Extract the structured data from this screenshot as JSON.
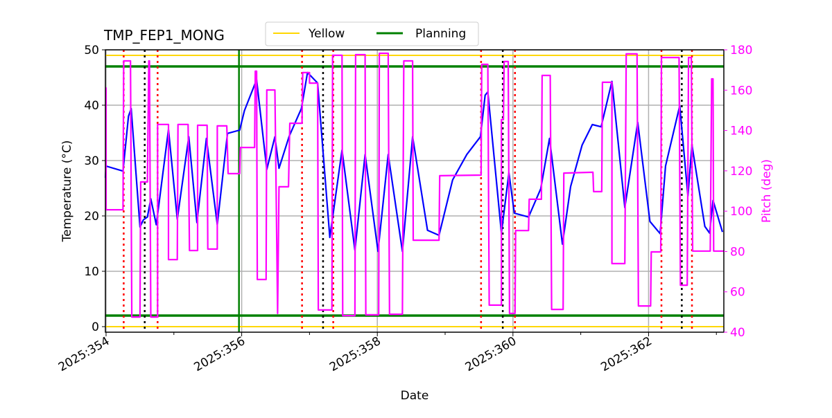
{
  "chart_data": {
    "type": "line",
    "title": "TMP_FEP1_MONG",
    "xlabel": "Date",
    "ylabel": "Temperature (°C)",
    "y2label": "Pitch (deg)",
    "xlim": [
      353.99,
      363.11
    ],
    "ylim": [
      -1,
      50
    ],
    "y2lim": [
      40,
      180
    ],
    "x_ticks": [
      354,
      356,
      358,
      360,
      362
    ],
    "x_tick_labels": [
      "2025:354",
      "2025:356",
      "2025:358",
      "2025:360",
      "2025:362"
    ],
    "x_minor_ticks": [
      355,
      357,
      359,
      361,
      363
    ],
    "y_ticks": [
      0,
      10,
      20,
      30,
      40,
      50
    ],
    "y2_ticks": [
      40,
      60,
      80,
      100,
      120,
      140,
      160,
      180
    ],
    "grid": true,
    "legend": {
      "placement": "top-center",
      "entries": [
        "Yellow",
        "Planning"
      ]
    },
    "colors": {
      "temperature": "#0000ff",
      "pitch": "#ff00ff",
      "yellow": "#ffd700",
      "planning": "#008000",
      "red_marker": "#ff0000",
      "black_marker": "#000000",
      "y2_axis": "#ff00ff"
    },
    "limits": [
      {
        "name": "Yellow",
        "values": [
          49,
          0
        ],
        "color": "#ffd700"
      },
      {
        "name": "Planning",
        "values": [
          47,
          2
        ],
        "color": "#008000"
      }
    ],
    "vertical_markers": {
      "red_dotted": [
        354.26,
        354.76,
        356.89,
        357.35,
        359.53,
        360.03,
        362.19,
        362.64
      ],
      "black_dotted": [
        354.57,
        357.2,
        359.85,
        362.49
      ],
      "green_solid": [
        355.96
      ]
    },
    "series": [
      {
        "axis": "left",
        "color": "#0000ff",
        "x": [
          353.99,
          354.0,
          354.25,
          354.33,
          354.37,
          354.5,
          354.55,
          354.61,
          354.66,
          354.74,
          354.92,
          355.05,
          355.22,
          355.34,
          355.48,
          355.64,
          355.79,
          355.97,
          356.04,
          356.22,
          356.37,
          356.49,
          356.55,
          356.7,
          356.88,
          356.97,
          357.12,
          357.3,
          357.48,
          357.67,
          357.82,
          358.01,
          358.16,
          358.37,
          358.52,
          358.74,
          358.91,
          359.11,
          359.32,
          359.52,
          359.59,
          359.63,
          359.83,
          359.94,
          360.02,
          360.23,
          360.41,
          360.54,
          360.73,
          360.85,
          361.02,
          361.17,
          361.3,
          361.46,
          361.65,
          361.84,
          362.02,
          362.17,
          362.25,
          362.46,
          362.58,
          362.64,
          362.83,
          362.9,
          362.95,
          363.09
        ],
        "y": [
          26.9,
          29.0,
          28.1,
          38.0,
          39.4,
          18.0,
          19.3,
          19.8,
          23.1,
          18.4,
          35.6,
          19.4,
          34.3,
          18.8,
          34.0,
          18.4,
          34.9,
          35.5,
          39.0,
          44.6,
          28.4,
          34.3,
          28.6,
          34.4,
          39.4,
          45.9,
          44.0,
          16.1,
          31.9,
          13.8,
          31.1,
          13.6,
          31.1,
          13.6,
          34.3,
          17.4,
          16.5,
          26.5,
          31.1,
          34.3,
          41.8,
          42.4,
          16.9,
          27.8,
          20.5,
          19.8,
          24.9,
          34.0,
          14.9,
          25.3,
          32.8,
          36.5,
          36.1,
          44.3,
          21.5,
          36.9,
          19.0,
          16.8,
          29.0,
          39.9,
          23.6,
          32.8,
          18.1,
          16.9,
          22.8,
          17.1
        ]
      },
      {
        "axis": "right",
        "color": "#ff00ff",
        "x": [
          353.99,
          354.0,
          354.0,
          354.25,
          354.26,
          354.36,
          354.38,
          354.5,
          354.51,
          354.61,
          354.63,
          354.64,
          354.66,
          354.76,
          354.76,
          354.92,
          354.92,
          355.05,
          355.06,
          355.21,
          355.23,
          355.35,
          355.35,
          355.49,
          355.5,
          355.64,
          355.64,
          355.78,
          355.8,
          355.97,
          355.98,
          356.19,
          356.2,
          356.22,
          356.23,
          356.36,
          356.37,
          356.49,
          356.53,
          356.55,
          356.69,
          356.71,
          356.89,
          356.9,
          357.0,
          357.0,
          357.12,
          357.13,
          357.33,
          357.34,
          357.48,
          357.49,
          357.67,
          357.68,
          357.82,
          357.83,
          358.02,
          358.03,
          358.16,
          358.18,
          358.37,
          358.39,
          358.52,
          358.53,
          358.91,
          358.92,
          359.53,
          359.54,
          359.63,
          359.65,
          359.83,
          359.83,
          359.86,
          359.87,
          359.93,
          359.95,
          360.03,
          360.04,
          360.23,
          360.24,
          360.42,
          360.43,
          360.55,
          360.57,
          360.74,
          360.75,
          361.18,
          361.19,
          361.31,
          361.32,
          361.46,
          361.46,
          361.65,
          361.67,
          361.83,
          361.85,
          362.03,
          362.04,
          362.18,
          362.19,
          362.45,
          362.47,
          362.57,
          362.59,
          362.63,
          362.65,
          362.91,
          362.93,
          362.95,
          362.96,
          363.11
        ],
        "y": [
          161.1,
          161.1,
          100.7,
          100.7,
          174.5,
          174.5,
          47.5,
          47.5,
          114.5,
          114.5,
          174.5,
          174.5,
          47.5,
          47.5,
          143.0,
          143.0,
          76.0,
          76.0,
          143.0,
          143.0,
          80.5,
          80.5,
          142.6,
          142.6,
          81.2,
          81.2,
          142.3,
          142.3,
          118.6,
          118.6,
          131.6,
          131.6,
          169.4,
          169.4,
          66.1,
          66.1,
          160.1,
          160.1,
          49.3,
          112.1,
          112.1,
          143.6,
          143.6,
          168.7,
          168.7,
          163.5,
          163.5,
          51.0,
          51.0,
          177.3,
          177.3,
          48.2,
          48.2,
          177.6,
          177.6,
          48.6,
          48.6,
          178.3,
          178.3,
          48.9,
          48.9,
          174.5,
          174.5,
          85.6,
          85.6,
          117.6,
          117.9,
          172.8,
          172.8,
          53.4,
          53.4,
          145.4,
          145.4,
          174.2,
          174.2,
          49.3,
          49.3,
          90.4,
          90.4,
          105.9,
          105.9,
          167.3,
          167.3,
          51.3,
          51.3,
          118.9,
          119.3,
          109.7,
          109.7,
          163.9,
          163.9,
          74.0,
          74.0,
          178.0,
          178.0,
          53.0,
          53.0,
          79.8,
          79.8,
          176.2,
          176.2,
          63.3,
          63.3,
          176.2,
          176.2,
          80.2,
          80.2,
          165.6,
          165.6,
          80.2,
          80.2
        ]
      }
    ]
  }
}
